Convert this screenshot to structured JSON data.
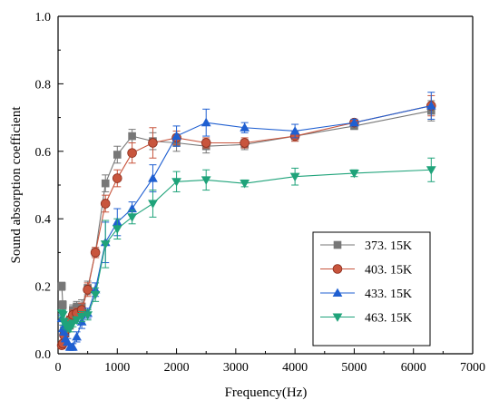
{
  "chart_data": {
    "type": "line",
    "title": "",
    "xlabel": "Frequency(Hz)",
    "ylabel": "Sound absorption coefficient",
    "xlim": [
      0,
      7000
    ],
    "ylim": [
      0,
      1.0
    ],
    "x_ticks": [
      0,
      1000,
      2000,
      3000,
      4000,
      5000,
      6000,
      7000
    ],
    "x_tick_labels": [
      "0",
      "1000",
      "2000",
      "3000",
      "4000",
      "5000",
      "6000",
      "7000"
    ],
    "y_ticks": [
      0,
      0.2,
      0.4,
      0.6,
      0.8,
      1.0
    ],
    "y_tick_labels": [
      "0.0",
      "0.2",
      "0.4",
      "0.6",
      "0.8",
      "1.0"
    ],
    "grid": false,
    "legend_position": "bottom-right",
    "x": [
      63,
      80,
      100,
      125,
      160,
      200,
      250,
      315,
      400,
      500,
      630,
      800,
      1000,
      1250,
      1600,
      2000,
      2500,
      3150,
      4000,
      5000,
      6300
    ],
    "series": [
      {
        "name": "373. 15K",
        "color": "#777777",
        "marker": "square",
        "values": [
          0.2,
          0.145,
          0.07,
          0.06,
          0.075,
          0.085,
          0.13,
          0.14,
          0.14,
          0.195,
          0.3,
          0.505,
          0.59,
          0.645,
          0.63,
          0.625,
          0.615,
          0.62,
          0.645,
          0.675,
          0.72
        ],
        "errors": [
          0.012,
          0.012,
          0.01,
          0.01,
          0.01,
          0.012,
          0.015,
          0.015,
          0.02,
          0.02,
          0.015,
          0.025,
          0.025,
          0.02,
          0.025,
          0.025,
          0.02,
          0.015,
          0.015,
          0.01,
          0.03
        ]
      },
      {
        "name": "403. 15K",
        "color": "#c8553d",
        "marker": "circle",
        "values": [
          0.025,
          0.03,
          0.055,
          0.07,
          0.085,
          0.1,
          0.115,
          0.12,
          0.13,
          0.19,
          0.3,
          0.445,
          0.52,
          0.595,
          0.625,
          0.64,
          0.625,
          0.625,
          0.645,
          0.685,
          0.735
        ],
        "errors": [
          0.01,
          0.01,
          0.01,
          0.01,
          0.01,
          0.012,
          0.015,
          0.015,
          0.02,
          0.02,
          0.015,
          0.025,
          0.025,
          0.03,
          0.045,
          0.02,
          0.015,
          0.015,
          0.015,
          0.01,
          0.03
        ]
      },
      {
        "name": "433. 15K",
        "color": "#1f5fd1",
        "marker": "triangle-up",
        "values": [
          0.105,
          0.075,
          0.065,
          0.045,
          0.035,
          0.02,
          0.02,
          0.05,
          0.095,
          0.12,
          0.19,
          0.33,
          0.39,
          0.43,
          0.52,
          0.645,
          0.685,
          0.67,
          0.66,
          0.685,
          0.735
        ],
        "errors": [
          0.01,
          0.01,
          0.01,
          0.01,
          0.01,
          0.01,
          0.01,
          0.015,
          0.02,
          0.015,
          0.02,
          0.06,
          0.04,
          0.02,
          0.04,
          0.03,
          0.04,
          0.015,
          0.02,
          0.01,
          0.04
        ]
      },
      {
        "name": "463. 15K",
        "color": "#1fa37a",
        "marker": "triangle-down",
        "values": [
          0.12,
          0.115,
          0.095,
          0.085,
          0.08,
          0.075,
          0.09,
          0.1,
          0.11,
          0.115,
          0.175,
          0.325,
          0.37,
          0.405,
          0.445,
          0.51,
          0.515,
          0.505,
          0.525,
          0.535,
          0.545
        ],
        "errors": [
          0.01,
          0.01,
          0.01,
          0.01,
          0.01,
          0.01,
          0.01,
          0.01,
          0.015,
          0.015,
          0.02,
          0.07,
          0.03,
          0.02,
          0.04,
          0.03,
          0.03,
          0.01,
          0.025,
          0.01,
          0.035
        ]
      }
    ]
  }
}
